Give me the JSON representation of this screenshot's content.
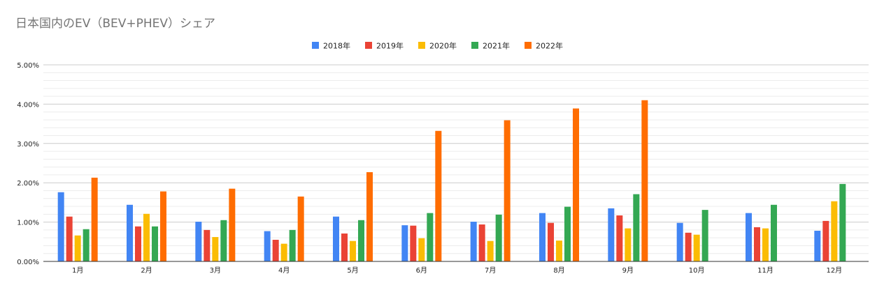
{
  "chart_data": {
    "type": "bar",
    "title": "日本国内のEV（BEV+PHEV）シェア",
    "xlabel": "",
    "ylabel": "",
    "categories": [
      "1月",
      "2月",
      "3月",
      "4月",
      "5月",
      "6月",
      "7月",
      "8月",
      "9月",
      "10月",
      "11月",
      "12月"
    ],
    "ylim": [
      0,
      5
    ],
    "yticks": [
      0,
      1,
      2,
      3,
      4,
      5
    ],
    "ytick_labels": [
      "0.00%",
      "1.00%",
      "2.00%",
      "3.00%",
      "4.00%",
      "5.00%"
    ],
    "grid": true,
    "legend_position": "top-center",
    "series": [
      {
        "name": "2018年",
        "color": "#4285f4",
        "values": [
          1.76,
          1.44,
          1.01,
          0.77,
          1.14,
          0.92,
          1.01,
          1.23,
          1.35,
          0.98,
          1.23,
          0.78
        ]
      },
      {
        "name": "2019年",
        "color": "#ea4335",
        "values": [
          1.14,
          0.89,
          0.8,
          0.55,
          0.71,
          0.91,
          0.94,
          0.98,
          1.17,
          0.73,
          0.87,
          1.03
        ]
      },
      {
        "name": "2020年",
        "color": "#fbbc04",
        "values": [
          0.66,
          1.21,
          0.62,
          0.45,
          0.52,
          0.59,
          0.52,
          0.53,
          0.84,
          0.68,
          0.84,
          1.53
        ]
      },
      {
        "name": "2021年",
        "color": "#34a853",
        "values": [
          0.82,
          0.89,
          1.05,
          0.8,
          1.05,
          1.23,
          1.19,
          1.39,
          1.71,
          1.31,
          1.44,
          1.97
        ]
      },
      {
        "name": "2022年",
        "color": "#ff6d01",
        "values": [
          2.13,
          1.78,
          1.85,
          1.65,
          2.27,
          3.32,
          3.59,
          3.89,
          4.1,
          null,
          null,
          null
        ]
      }
    ]
  }
}
